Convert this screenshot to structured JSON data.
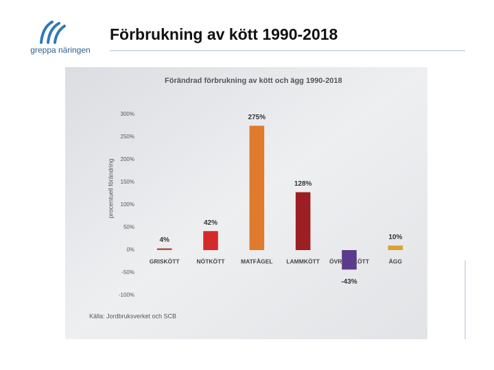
{
  "header": {
    "logo_text": "greppa näringen",
    "title": "Förbrukning av kött  1990-2018"
  },
  "chart_data": {
    "type": "bar",
    "title": "Förändrad förbrukning av kött och ägg 1990-2018",
    "y_label": "procentuell förändring",
    "source": "Källa: Jordbruksverket och SCB",
    "categories": [
      "GRISKÖTT",
      "NÖTKÖTT",
      "MATFÅGEL",
      "LAMMKÖTT",
      "ÖVRIGT KÖTT",
      "ÄGG"
    ],
    "values": [
      4,
      42,
      275,
      128,
      -43,
      10
    ],
    "value_labels": [
      "4%",
      "42%",
      "275%",
      "128%",
      "-43%",
      "10%"
    ],
    "colors": [
      "#b5564c",
      "#d42a2a",
      "#e07a2c",
      "#9c1f24",
      "#5b3b8c",
      "#d9a232"
    ],
    "ylim": [
      -100,
      300
    ],
    "yticks": [
      {
        "value": -100,
        "label": "-100%"
      },
      {
        "value": -50,
        "label": "-50%"
      },
      {
        "value": 0,
        "label": "0%"
      },
      {
        "value": 50,
        "label": "50%"
      },
      {
        "value": 100,
        "label": "100%"
      },
      {
        "value": 150,
        "label": "150%"
      },
      {
        "value": 200,
        "label": "200%"
      },
      {
        "value": 250,
        "label": "250%"
      },
      {
        "value": 300,
        "label": "300%"
      }
    ]
  }
}
